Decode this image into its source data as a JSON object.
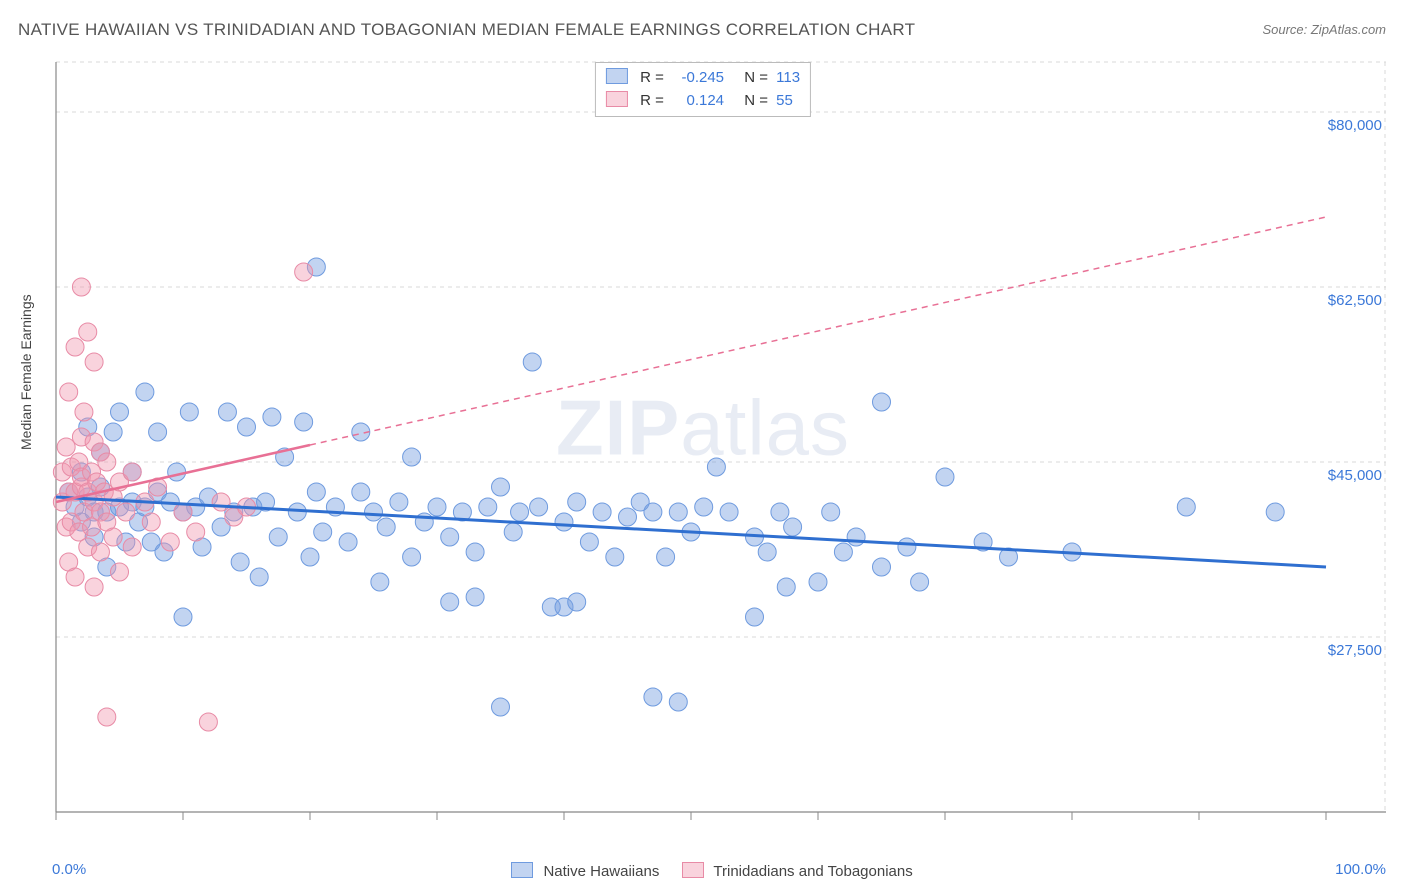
{
  "title": "NATIVE HAWAIIAN VS TRINIDADIAN AND TOBAGONIAN MEDIAN FEMALE EARNINGS CORRELATION CHART",
  "source": "Source: ZipAtlas.com",
  "watermark_bold": "ZIP",
  "watermark_rest": "atlas",
  "ylabel": "Median Female Earnings",
  "xaxis": {
    "min_label": "0.0%",
    "max_label": "100.0%",
    "min": 0,
    "max": 100,
    "ticks": [
      0,
      10,
      20,
      30,
      40,
      50,
      60,
      70,
      80,
      90,
      100
    ]
  },
  "yaxis": {
    "min": 10000,
    "max": 85000,
    "grid_values": [
      27500,
      45000,
      62500,
      80000
    ],
    "grid_labels": [
      "$27,500",
      "$45,000",
      "$62,500",
      "$80,000"
    ],
    "label_color": "#3b78d8"
  },
  "plot": {
    "background": "#ffffff",
    "grid_color": "#d8d8d8",
    "axis_color": "#888888",
    "border_right_color": "#d8d8d8"
  },
  "series": [
    {
      "name": "Native Hawaiians",
      "short_key": "blue",
      "fill": "rgba(120,160,225,0.45)",
      "stroke": "#6f9bdf",
      "trend_color": "#2f6fd0",
      "trend_width": 3,
      "trend_dash": "",
      "R": "-0.245",
      "N": "113",
      "trend_start_y": 41500,
      "trend_end_y": 34500,
      "solid_segment_end_x": 100,
      "points": [
        [
          1,
          42000
        ],
        [
          1.5,
          40500
        ],
        [
          2,
          44000
        ],
        [
          2,
          39000
        ],
        [
          2.5,
          41500
        ],
        [
          2.5,
          48500
        ],
        [
          3,
          40000
        ],
        [
          3,
          37500
        ],
        [
          3.5,
          42500
        ],
        [
          3.5,
          46000
        ],
        [
          4,
          40000
        ],
        [
          4,
          34500
        ],
        [
          4.5,
          48000
        ],
        [
          5,
          40500
        ],
        [
          5,
          50000
        ],
        [
          5.5,
          37000
        ],
        [
          6,
          41000
        ],
        [
          6,
          44000
        ],
        [
          6.5,
          39000
        ],
        [
          7,
          52000
        ],
        [
          7,
          40500
        ],
        [
          7.5,
          37000
        ],
        [
          8,
          42000
        ],
        [
          8,
          48000
        ],
        [
          8.5,
          36000
        ],
        [
          9,
          41000
        ],
        [
          9.5,
          44000
        ],
        [
          10,
          29500
        ],
        [
          10,
          40000
        ],
        [
          10.5,
          50000
        ],
        [
          11,
          40500
        ],
        [
          11.5,
          36500
        ],
        [
          12,
          41500
        ],
        [
          13,
          38500
        ],
        [
          13.5,
          50000
        ],
        [
          14,
          40000
        ],
        [
          14.5,
          35000
        ],
        [
          15,
          48500
        ],
        [
          15.5,
          40500
        ],
        [
          16,
          33500
        ],
        [
          16.5,
          41000
        ],
        [
          17,
          49500
        ],
        [
          17.5,
          37500
        ],
        [
          18,
          45500
        ],
        [
          19,
          40000
        ],
        [
          19.5,
          49000
        ],
        [
          20,
          35500
        ],
        [
          20.5,
          42000
        ],
        [
          20.5,
          64500
        ],
        [
          21,
          38000
        ],
        [
          22,
          40500
        ],
        [
          23,
          37000
        ],
        [
          24,
          42000
        ],
        [
          24,
          48000
        ],
        [
          25,
          40000
        ],
        [
          25.5,
          33000
        ],
        [
          26,
          38500
        ],
        [
          27,
          41000
        ],
        [
          28,
          45500
        ],
        [
          28,
          35500
        ],
        [
          29,
          39000
        ],
        [
          30,
          40500
        ],
        [
          31,
          37500
        ],
        [
          31,
          31000
        ],
        [
          32,
          40000
        ],
        [
          33,
          36000
        ],
        [
          33,
          31500
        ],
        [
          34,
          40500
        ],
        [
          35,
          42500
        ],
        [
          35,
          20500
        ],
        [
          36,
          38000
        ],
        [
          36.5,
          40000
        ],
        [
          37.5,
          55000
        ],
        [
          38,
          40500
        ],
        [
          39,
          30500
        ],
        [
          40,
          39000
        ],
        [
          40,
          30500
        ],
        [
          41,
          41000
        ],
        [
          41,
          31000
        ],
        [
          42,
          37000
        ],
        [
          43,
          40000
        ],
        [
          44,
          35500
        ],
        [
          45,
          39500
        ],
        [
          46,
          41000
        ],
        [
          47,
          40000
        ],
        [
          47,
          21500
        ],
        [
          48,
          35500
        ],
        [
          49,
          40000
        ],
        [
          49,
          21000
        ],
        [
          50,
          38000
        ],
        [
          51,
          40500
        ],
        [
          52,
          44500
        ],
        [
          53,
          40000
        ],
        [
          55,
          29500
        ],
        [
          55,
          37500
        ],
        [
          56,
          36000
        ],
        [
          57,
          40000
        ],
        [
          57.5,
          32500
        ],
        [
          58,
          38500
        ],
        [
          60,
          33000
        ],
        [
          61,
          40000
        ],
        [
          62,
          36000
        ],
        [
          63,
          37500
        ],
        [
          65,
          51000
        ],
        [
          65,
          34500
        ],
        [
          67,
          36500
        ],
        [
          68,
          33000
        ],
        [
          70,
          43500
        ],
        [
          73,
          37000
        ],
        [
          75,
          35500
        ],
        [
          80,
          36000
        ],
        [
          89,
          40500
        ],
        [
          96,
          40000
        ]
      ]
    },
    {
      "name": "Trinidadians and Tobagonians",
      "short_key": "pink",
      "fill": "rgba(240,150,175,0.42)",
      "stroke": "#e88ba6",
      "trend_color": "#e87095",
      "trend_width": 2.5,
      "trend_dash": "6 5",
      "R": "0.124",
      "N": "55",
      "trend_start_y": 41000,
      "trend_end_y": 69500,
      "solid_segment_end_x": 20,
      "points": [
        [
          0.5,
          41000
        ],
        [
          0.5,
          44000
        ],
        [
          0.8,
          46500
        ],
        [
          0.8,
          38500
        ],
        [
          1,
          42000
        ],
        [
          1,
          52000
        ],
        [
          1,
          35000
        ],
        [
          1.2,
          44500
        ],
        [
          1.2,
          39000
        ],
        [
          1.5,
          42000
        ],
        [
          1.5,
          56500
        ],
        [
          1.5,
          33500
        ],
        [
          1.8,
          45000
        ],
        [
          1.8,
          38000
        ],
        [
          2,
          42500
        ],
        [
          2,
          47500
        ],
        [
          2,
          62500
        ],
        [
          2,
          43500
        ],
        [
          2.2,
          40000
        ],
        [
          2.2,
          50000
        ],
        [
          2.5,
          36500
        ],
        [
          2.5,
          42000
        ],
        [
          2.5,
          58000
        ],
        [
          2.8,
          44000
        ],
        [
          2.8,
          38500
        ],
        [
          3,
          41000
        ],
        [
          3,
          47000
        ],
        [
          3,
          55000
        ],
        [
          3,
          32500
        ],
        [
          3.2,
          43000
        ],
        [
          3.5,
          40000
        ],
        [
          3.5,
          46000
        ],
        [
          3.5,
          36000
        ],
        [
          3.8,
          42000
        ],
        [
          4,
          45000
        ],
        [
          4,
          39000
        ],
        [
          4,
          19500
        ],
        [
          4.5,
          41500
        ],
        [
          4.5,
          37500
        ],
        [
          5,
          43000
        ],
        [
          5,
          34000
        ],
        [
          5.5,
          40000
        ],
        [
          6,
          44000
        ],
        [
          6,
          36500
        ],
        [
          7,
          41000
        ],
        [
          7.5,
          39000
        ],
        [
          8,
          42500
        ],
        [
          9,
          37000
        ],
        [
          10,
          40000
        ],
        [
          11,
          38000
        ],
        [
          12,
          19000
        ],
        [
          13,
          41000
        ],
        [
          14,
          39500
        ],
        [
          15,
          40500
        ],
        [
          19.5,
          64000
        ]
      ]
    }
  ],
  "legend": {
    "R_label": "R =",
    "N_label": "N ="
  },
  "bottom_legend": {
    "label1": "Native Hawaiians",
    "label2": "Trinidadians and Tobagonians"
  },
  "marker_radius": 9
}
